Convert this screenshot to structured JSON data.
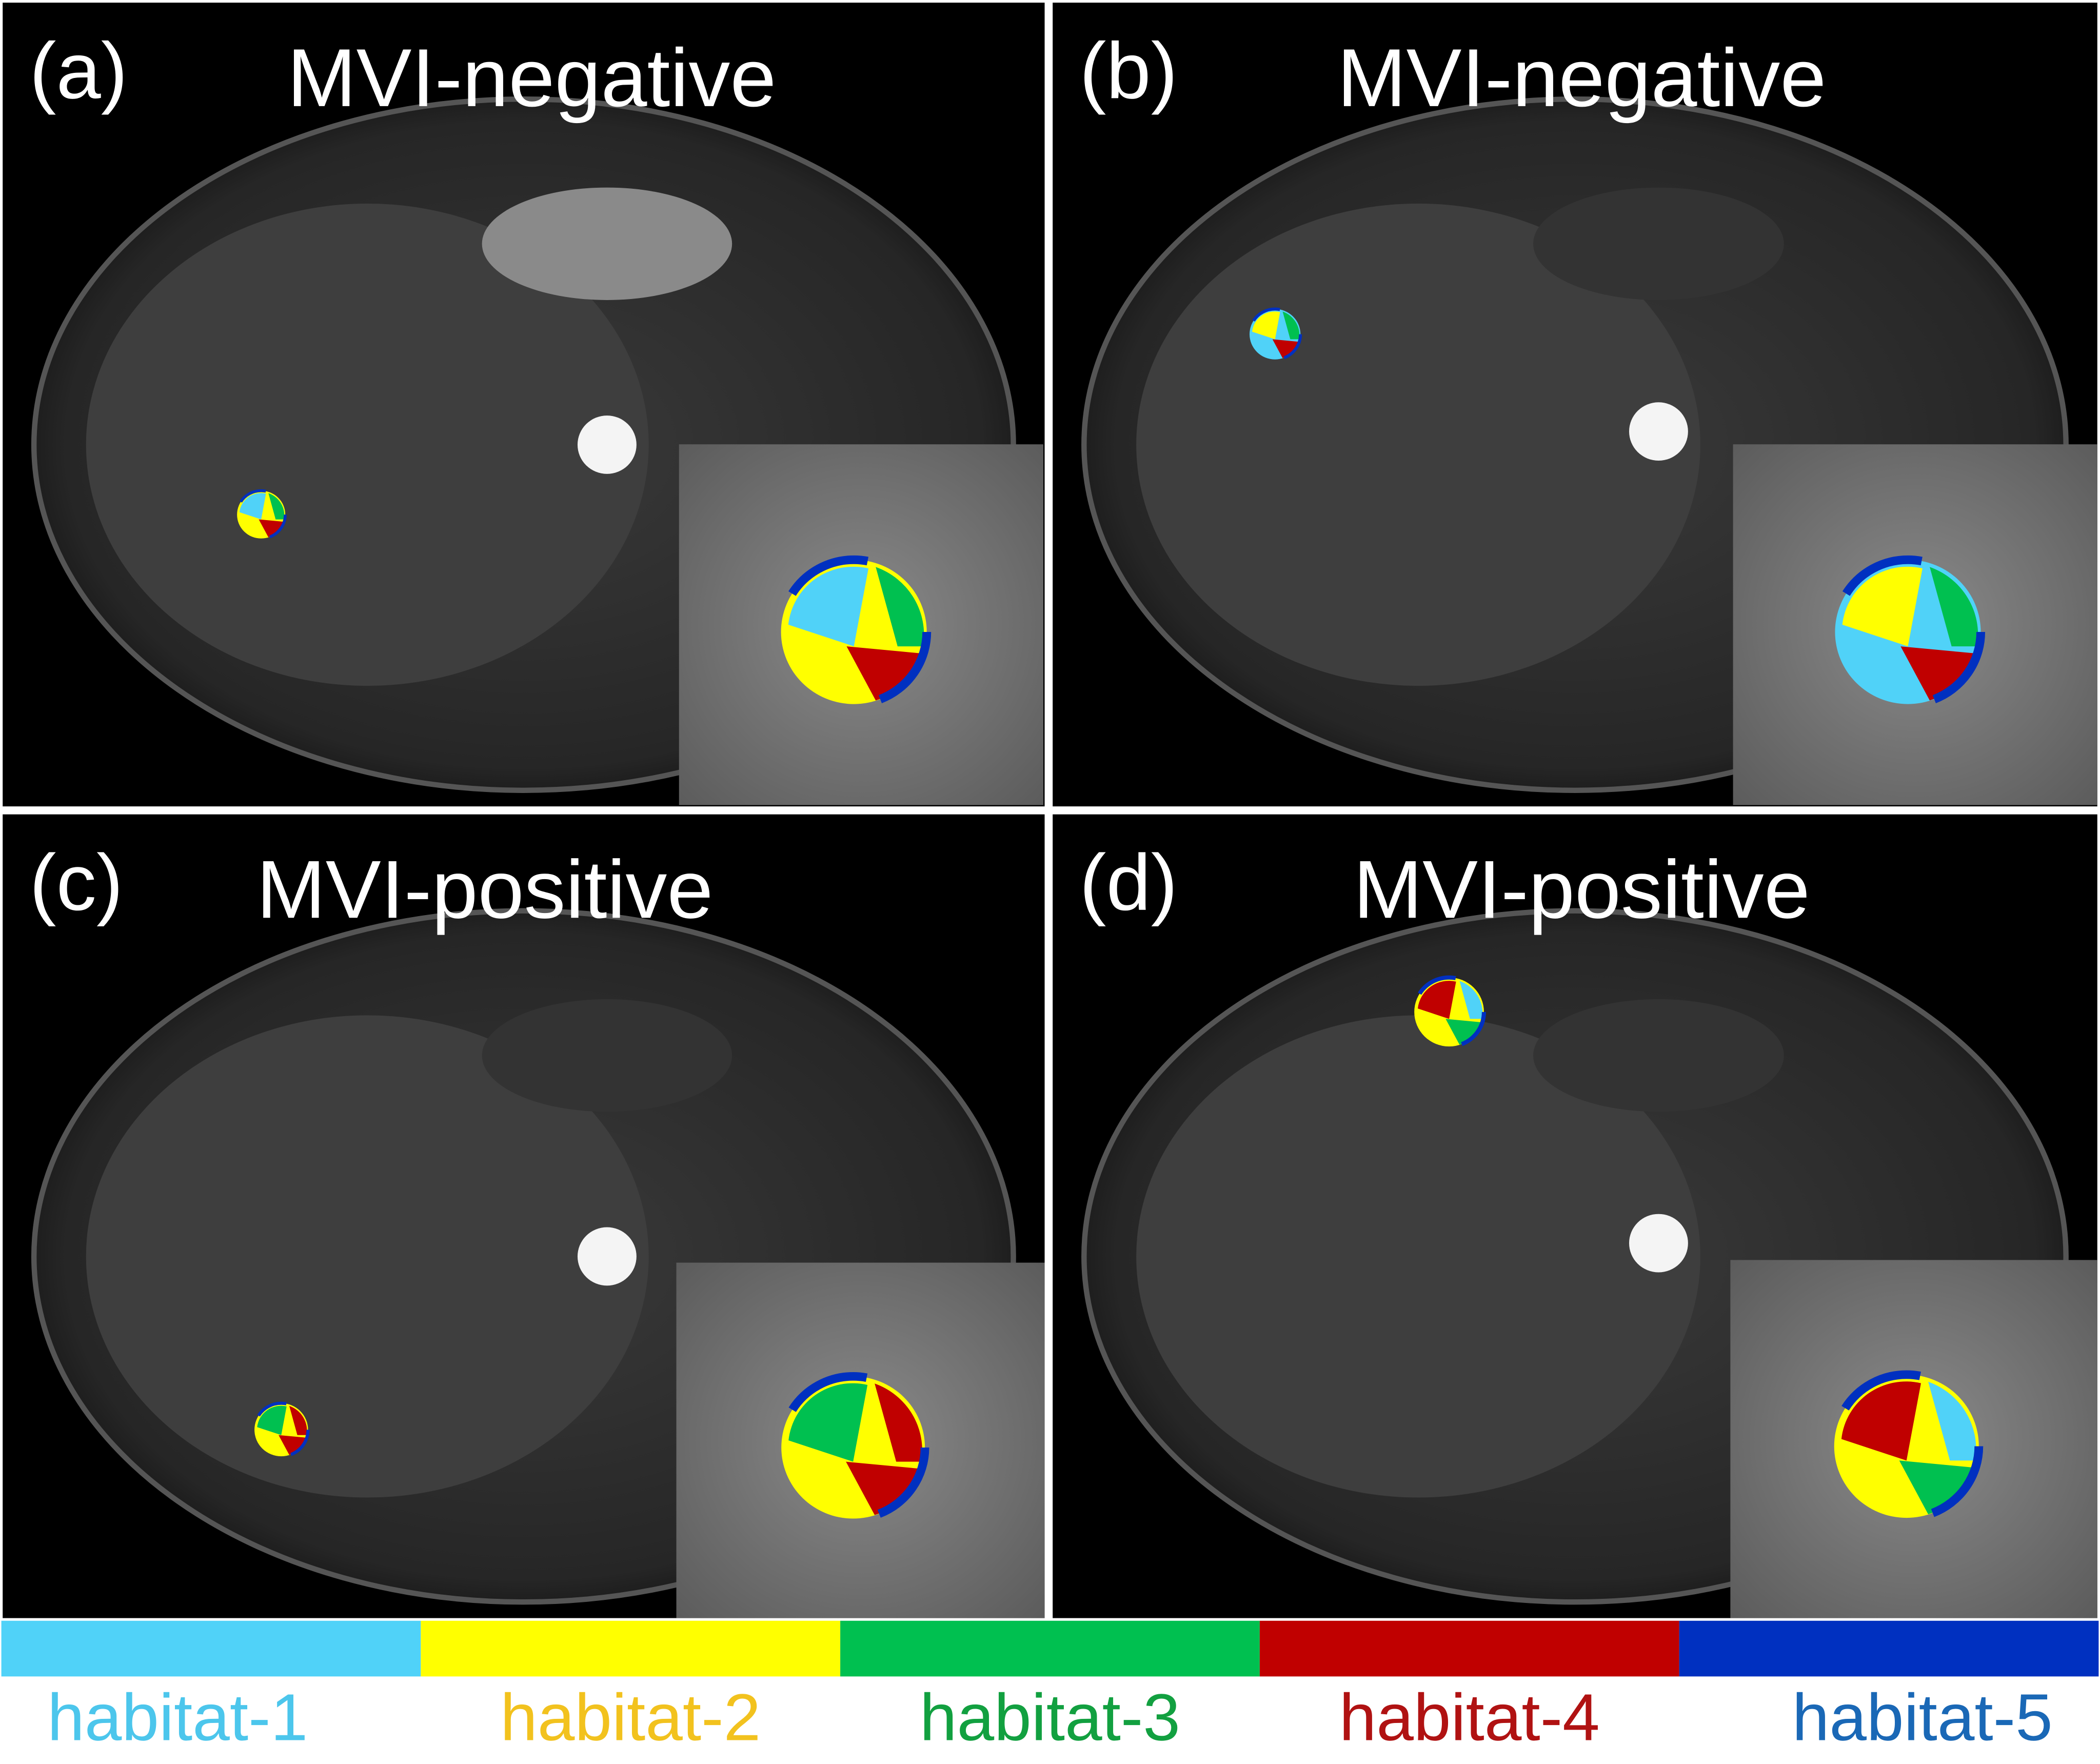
{
  "panels": [
    {
      "label": "(a)",
      "title": "MVI-negative"
    },
    {
      "label": "(b)",
      "title": "MVI-negative"
    },
    {
      "label": "(c)",
      "title": "MVI-positive"
    },
    {
      "label": "(d)",
      "title": "MVI-positive"
    }
  ],
  "legend": [
    {
      "name": "habitat-1",
      "color": "#50d2f8",
      "text_color": "#4cc6ec"
    },
    {
      "name": "habitat-2",
      "color": "#ffff00",
      "text_color": "#f2c21e"
    },
    {
      "name": "habitat-3",
      "color": "#00c050",
      "text_color": "#12a040"
    },
    {
      "name": "habitat-4",
      "color": "#c00000",
      "text_color": "#b01212"
    },
    {
      "name": "habitat-5",
      "color": "#0030c0",
      "text_color": "#1a68b6"
    }
  ]
}
